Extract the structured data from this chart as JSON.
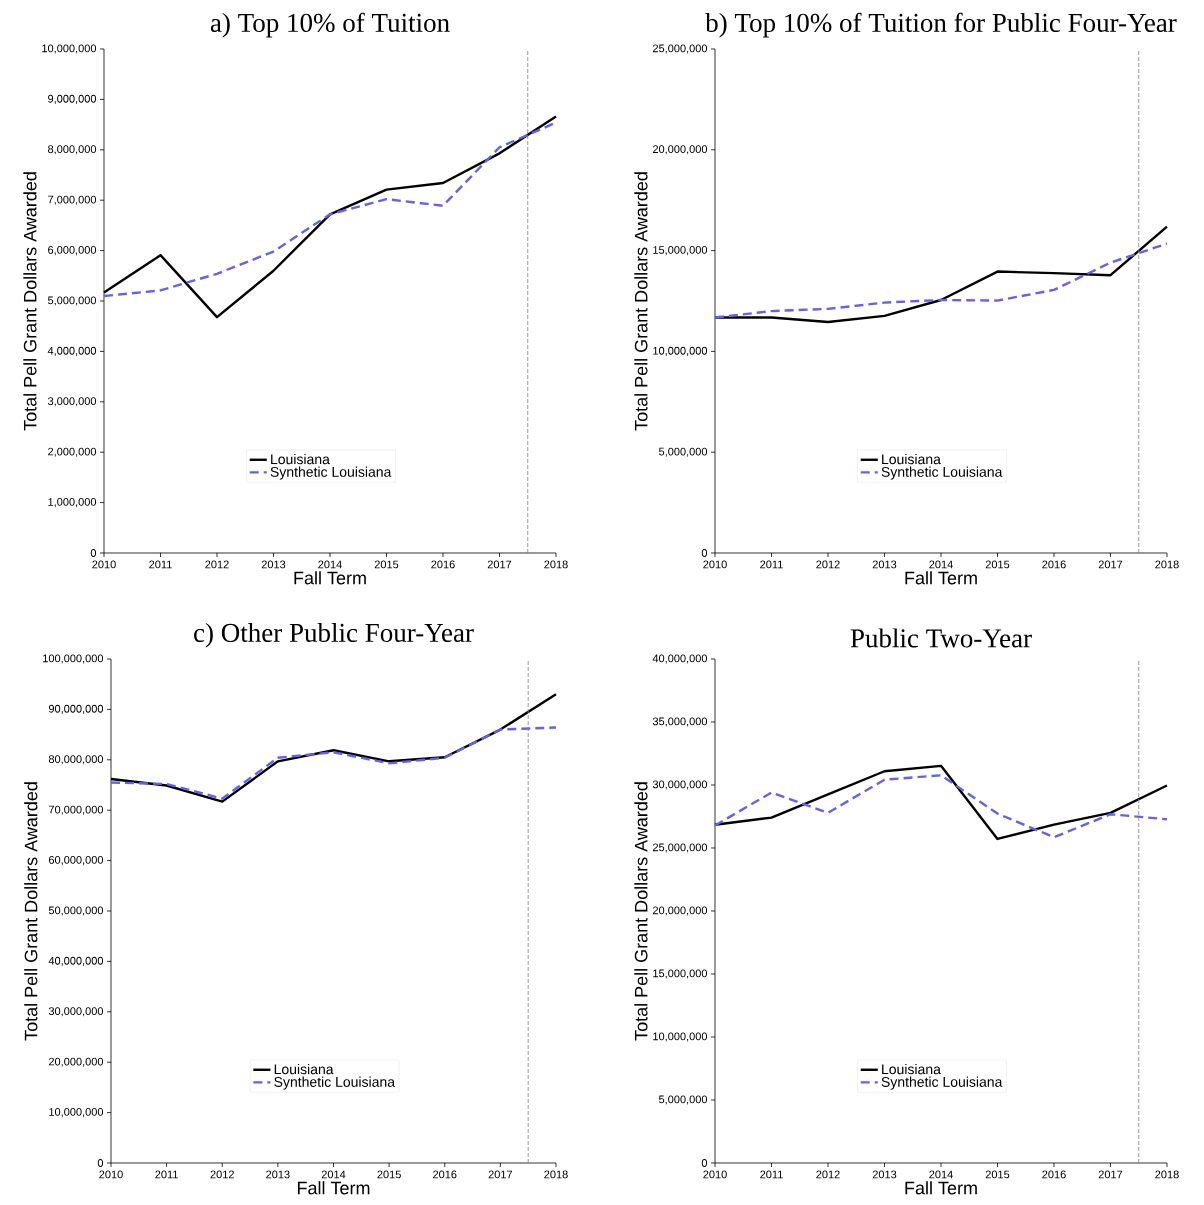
{
  "chart_data": [
    {
      "type": "line",
      "title": "a) Top 10% of Tuition",
      "xlabel": "Fall Term",
      "ylabel": "Total Pell Grant Dollars Awarded",
      "x": [
        2010,
        2011,
        2012,
        2013,
        2014,
        2015,
        2016,
        2017,
        2018
      ],
      "xlim": [
        2010,
        2018
      ],
      "xticks": [
        2010,
        2011,
        2012,
        2013,
        2014,
        2015,
        2016,
        2017,
        2018
      ],
      "ylim": [
        0,
        10000000
      ],
      "yticks": [
        0,
        {
          "value": 1000000,
          "label": "1,000,000"
        },
        {
          "value": 2000000,
          "label": "2,000,000"
        },
        {
          "value": 3000000,
          "label": "3,000,000"
        },
        {
          "value": 4000000,
          "label": "4,000,000"
        },
        {
          "value": 5000000,
          "label": "5,000,000"
        },
        {
          "value": 6000000,
          "label": "6,000,000"
        },
        {
          "value": 7000000,
          "label": "7,000,000"
        },
        {
          "value": 8000000,
          "label": "8,000,000"
        },
        {
          "value": 9000000,
          "label": "9,000,000"
        },
        {
          "value": 10000000,
          "label": "10,000,000"
        }
      ],
      "series": [
        {
          "name": "Louisiana",
          "color": "#000000",
          "line_style": "solid",
          "values": [
            5170000,
            5910000,
            4680000,
            5600000,
            6720000,
            7210000,
            7340000,
            7930000,
            8660000
          ]
        },
        {
          "name": "Synthetic Louisiana",
          "color": "#6560ee",
          "line_style": "dashed",
          "values": [
            5100000,
            5210000,
            5540000,
            5980000,
            6720000,
            7020000,
            6890000,
            8050000,
            8540000
          ]
        }
      ],
      "ref_lines": [
        {
          "axis": "x",
          "value": 2017.5,
          "color": "#808080",
          "line_style": "dashed"
        }
      ],
      "legend": "bottom"
    },
    {
      "type": "line",
      "title": "b) Top 10% of Tuition for Public Four-Year",
      "xlabel": "Fall Term",
      "ylabel": "Total Pell Grant Dollars Awarded",
      "x": [
        2010,
        2011,
        2012,
        2013,
        2014,
        2015,
        2016,
        2017,
        2018
      ],
      "xlim": [
        2010,
        2018
      ],
      "xticks": [
        2010,
        2011,
        2012,
        2013,
        2014,
        2015,
        2016,
        2017,
        2018
      ],
      "ylim": [
        0,
        25000000
      ],
      "yticks": [
        0,
        {
          "value": 5000000,
          "label": "5,000,000"
        },
        {
          "value": 10000000,
          "label": "10,000,000"
        },
        {
          "value": 15000000,
          "label": "15,000,000"
        },
        {
          "value": 20000000,
          "label": "20,000,000"
        },
        {
          "value": 25000000,
          "label": "25,000,000"
        }
      ],
      "series": [
        {
          "name": "Louisiana",
          "color": "#000000",
          "line_style": "solid",
          "values": [
            11680000,
            11680000,
            11460000,
            11760000,
            12550000,
            13960000,
            13880000,
            13780000,
            16190000
          ]
        },
        {
          "name": "Synthetic Louisiana",
          "color": "#6560ee",
          "line_style": "dashed",
          "values": [
            11680000,
            12000000,
            12110000,
            12420000,
            12550000,
            12520000,
            13050000,
            14400000,
            15350000
          ]
        }
      ],
      "ref_lines": [
        {
          "axis": "x",
          "value": 2017.5,
          "color": "#808080",
          "line_style": "dashed"
        }
      ],
      "legend": "bottom"
    },
    {
      "type": "line",
      "title": "c) Other Public Four-Year",
      "xlabel": "Fall Term",
      "ylabel": "Total Pell Grant Dollars Awarded",
      "x": [
        2010,
        2011,
        2012,
        2013,
        2014,
        2015,
        2016,
        2017,
        2018
      ],
      "xlim": [
        2010,
        2018
      ],
      "xticks": [
        2010,
        2011,
        2012,
        2013,
        2014,
        2015,
        2016,
        2017,
        2018
      ],
      "ylim": [
        0,
        100000000
      ],
      "yticks": [
        0,
        {
          "value": 10000000,
          "label": "10,000,000"
        },
        {
          "value": 20000000,
          "label": "20,000,000"
        },
        {
          "value": 30000000,
          "label": "30,000,000"
        },
        {
          "value": 40000000,
          "label": "40,000,000"
        },
        {
          "value": 50000000,
          "label": "50,000,000"
        },
        {
          "value": 60000000,
          "label": "60,000,000"
        },
        {
          "value": 70000000,
          "label": "70,000,000"
        },
        {
          "value": 80000000,
          "label": "80,000,000"
        },
        {
          "value": 90000000,
          "label": "90,000,000"
        },
        {
          "value": 100000000,
          "label": "100,000,000"
        }
      ],
      "series": [
        {
          "name": "Louisiana",
          "color": "#000000",
          "line_style": "solid",
          "values": [
            76200000,
            74900000,
            71700000,
            79700000,
            81900000,
            79700000,
            80500000,
            86000000,
            93000000
          ]
        },
        {
          "name": "Synthetic Louisiana",
          "color": "#6560ee",
          "line_style": "dashed",
          "values": [
            75500000,
            75200000,
            72300000,
            80400000,
            81500000,
            79300000,
            80400000,
            86000000,
            86400000
          ]
        }
      ],
      "ref_lines": [
        {
          "axis": "x",
          "value": 2017.5,
          "color": "#808080",
          "line_style": "dashed"
        }
      ],
      "legend": "bottom"
    },
    {
      "type": "line",
      "title": "Public Two-Year",
      "xlabel": "Fall Term",
      "ylabel": "Total Pell Grant Dollars Awarded",
      "x": [
        2010,
        2011,
        2012,
        2013,
        2014,
        2015,
        2016,
        2017,
        2018
      ],
      "xlim": [
        2010,
        2018
      ],
      "xticks": [
        2010,
        2011,
        2012,
        2013,
        2014,
        2015,
        2016,
        2017,
        2018
      ],
      "ylim": [
        0,
        40000000
      ],
      "yticks": [
        0,
        {
          "value": 5000000,
          "label": "5,000,000"
        },
        {
          "value": 10000000,
          "label": "10,000,000"
        },
        {
          "value": 15000000,
          "label": "15,000,000"
        },
        {
          "value": 20000000,
          "label": "20,000,000"
        },
        {
          "value": 25000000,
          "label": "25,000,000"
        },
        {
          "value": 30000000,
          "label": "30,000,000"
        },
        {
          "value": 35000000,
          "label": "35,000,000"
        },
        {
          "value": 40000000,
          "label": "40,000,000"
        }
      ],
      "series": [
        {
          "name": "Louisiana",
          "color": "#000000",
          "line_style": "solid",
          "values": [
            26850000,
            27410000,
            29260000,
            31090000,
            31520000,
            25720000,
            26850000,
            27790000,
            29960000
          ]
        },
        {
          "name": "Synthetic Louisiana",
          "color": "#6560ee",
          "line_style": "dashed",
          "values": [
            26790000,
            29400000,
            27790000,
            30420000,
            30770000,
            27730000,
            25850000,
            27680000,
            27280000
          ]
        }
      ],
      "ref_lines": [
        {
          "axis": "x",
          "value": 2017.5,
          "color": "#808080",
          "line_style": "dashed"
        }
      ],
      "legend": "bottom"
    }
  ]
}
